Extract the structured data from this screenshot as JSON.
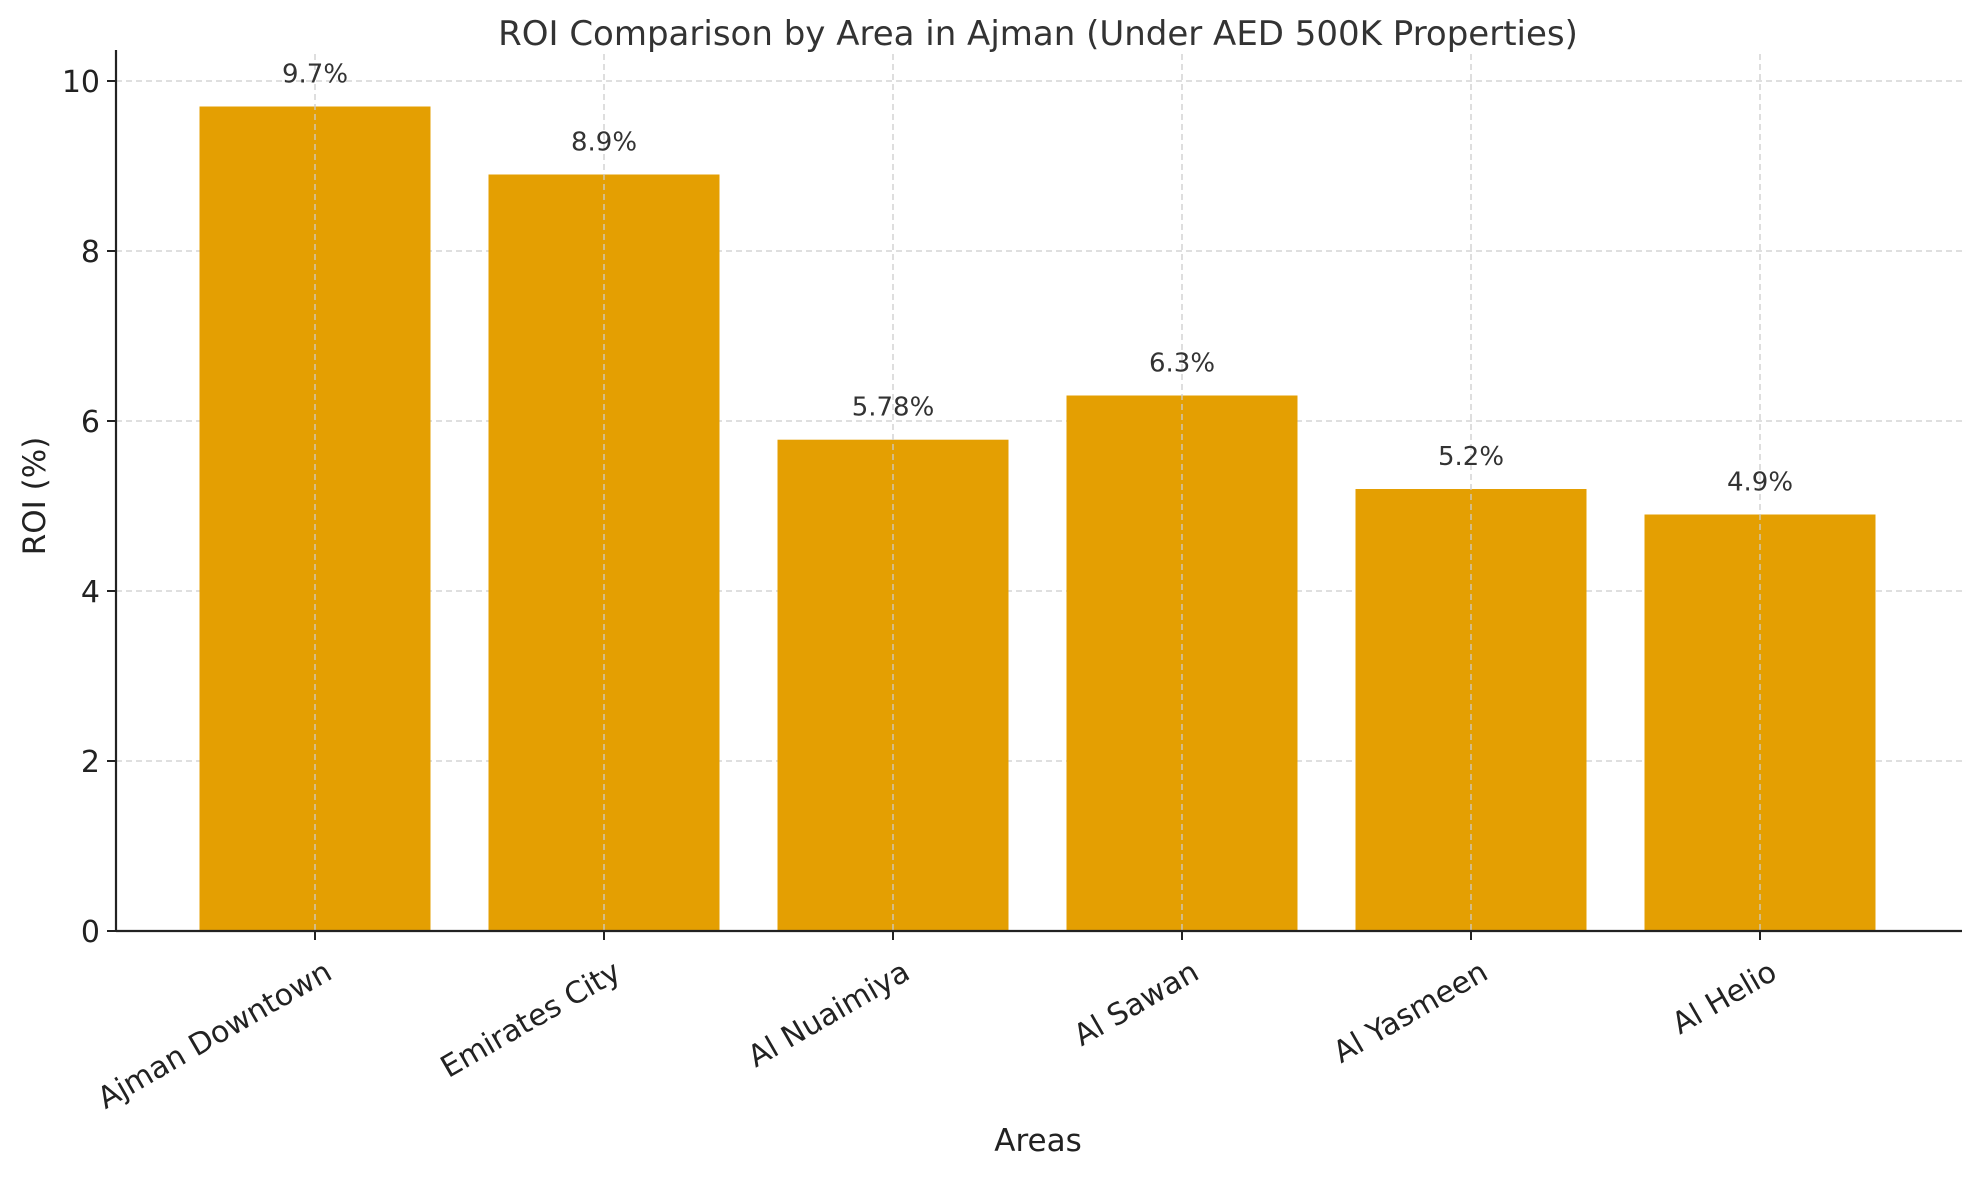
{
  "chart_data": {
    "type": "bar",
    "title": "ROI Comparison by Area in Ajman (Under AED 500K Properties)",
    "xlabel": "Areas",
    "ylabel": "ROI (%)",
    "categories": [
      "Ajman Downtown",
      "Emirates City",
      "Al Nuaimiya",
      "Al Sawan",
      "Al Yasmeen",
      "Al Helio"
    ],
    "values": [
      9.7,
      8.9,
      5.78,
      6.3,
      5.2,
      4.9
    ],
    "data_labels": [
      "9.7%",
      "8.9%",
      "5.78%",
      "6.3%",
      "5.2%",
      "4.9%"
    ],
    "ylim": [
      0,
      10.2
    ],
    "yticks": [
      0,
      2,
      4,
      6,
      8,
      10
    ],
    "ytick_labels": [
      "0",
      "2",
      "4",
      "6",
      "8",
      "10"
    ],
    "grid": true,
    "bar_color": "#E49F02"
  }
}
